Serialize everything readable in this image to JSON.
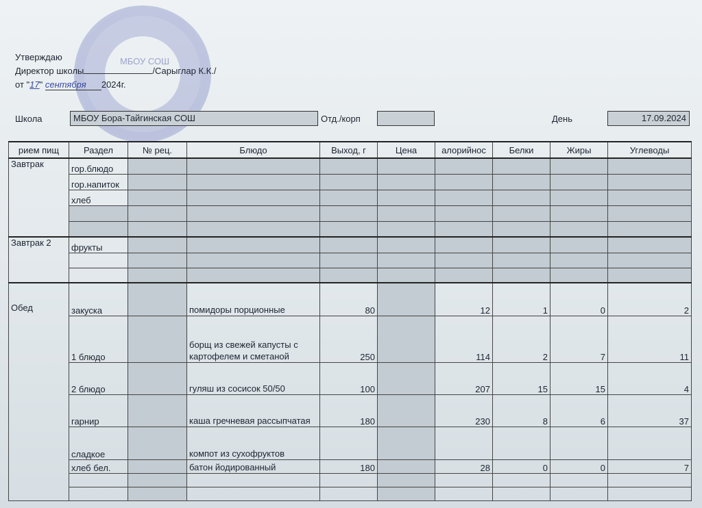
{
  "approval": {
    "line1": "Утверждаю",
    "line2_prefix": "Директор школы",
    "signature_name": "/Сарыглар К.К./",
    "date_prefix": "от \"",
    "day": "17",
    "date_mid": "\"",
    "month": "сентября",
    "year": "2024г.",
    "stamp_text": "МБОУ СОШ"
  },
  "school": {
    "label": "Школа",
    "value": "МБОУ Бора-Тайгинская СОШ",
    "dept_label": "Отд./корп",
    "dept_value": "",
    "day_label": "День",
    "day_value": "17.09.2024"
  },
  "columns": [
    "рием пищ",
    "Раздел",
    "№ рец.",
    "Блюдо",
    "Выход, г",
    "Цена",
    "алорийнос",
    "Белки",
    "Жиры",
    "Углеводы"
  ],
  "sections": [
    {
      "meal": "Завтрак",
      "rows": [
        {
          "section": "гор.блюдо"
        },
        {
          "section": "гор.напиток"
        },
        {
          "section": "хлеб"
        },
        {
          "section": ""
        },
        {
          "section": ""
        }
      ]
    },
    {
      "meal": "Завтрак 2",
      "rows": [
        {
          "section": "фрукты"
        },
        {
          "section": ""
        },
        {
          "section": ""
        }
      ]
    },
    {
      "meal": "Обед",
      "rows": [
        {
          "section": "закуска",
          "dish": "помидоры порционные",
          "yield": "80",
          "price": "",
          "kcal": "12",
          "protein": "1",
          "fat": "0",
          "carbs": "2"
        },
        {
          "section": "1 блюдо",
          "dish": "борщ из свежей капусты с картофелем и сметаной",
          "yield": "250",
          "price": "",
          "kcal": "114",
          "protein": "2",
          "fat": "7",
          "carbs": "11"
        },
        {
          "section": "2 блюдо",
          "dish": "гуляш из сосисок 50/50",
          "yield": "100",
          "price": "",
          "kcal": "207",
          "protein": "15",
          "fat": "15",
          "carbs": "4"
        },
        {
          "section": "гарнир",
          "dish": "каша гречневая рассыпчатая",
          "yield": "180",
          "price": "",
          "kcal": "230",
          "protein": "8",
          "fat": "6",
          "carbs": "37"
        },
        {
          "section": "сладкое",
          "dish": "компот из сухофруктов",
          "yield": "",
          "price": "",
          "kcal": "",
          "protein": "",
          "fat": "",
          "carbs": ""
        },
        {
          "section": "хлеб бел.",
          "dish": "батон йодированный",
          "yield": "180",
          "price": "",
          "kcal": "28",
          "protein": "0",
          "fat": "0",
          "carbs": "7"
        },
        {
          "section": ""
        },
        {
          "section": ""
        }
      ]
    }
  ]
}
